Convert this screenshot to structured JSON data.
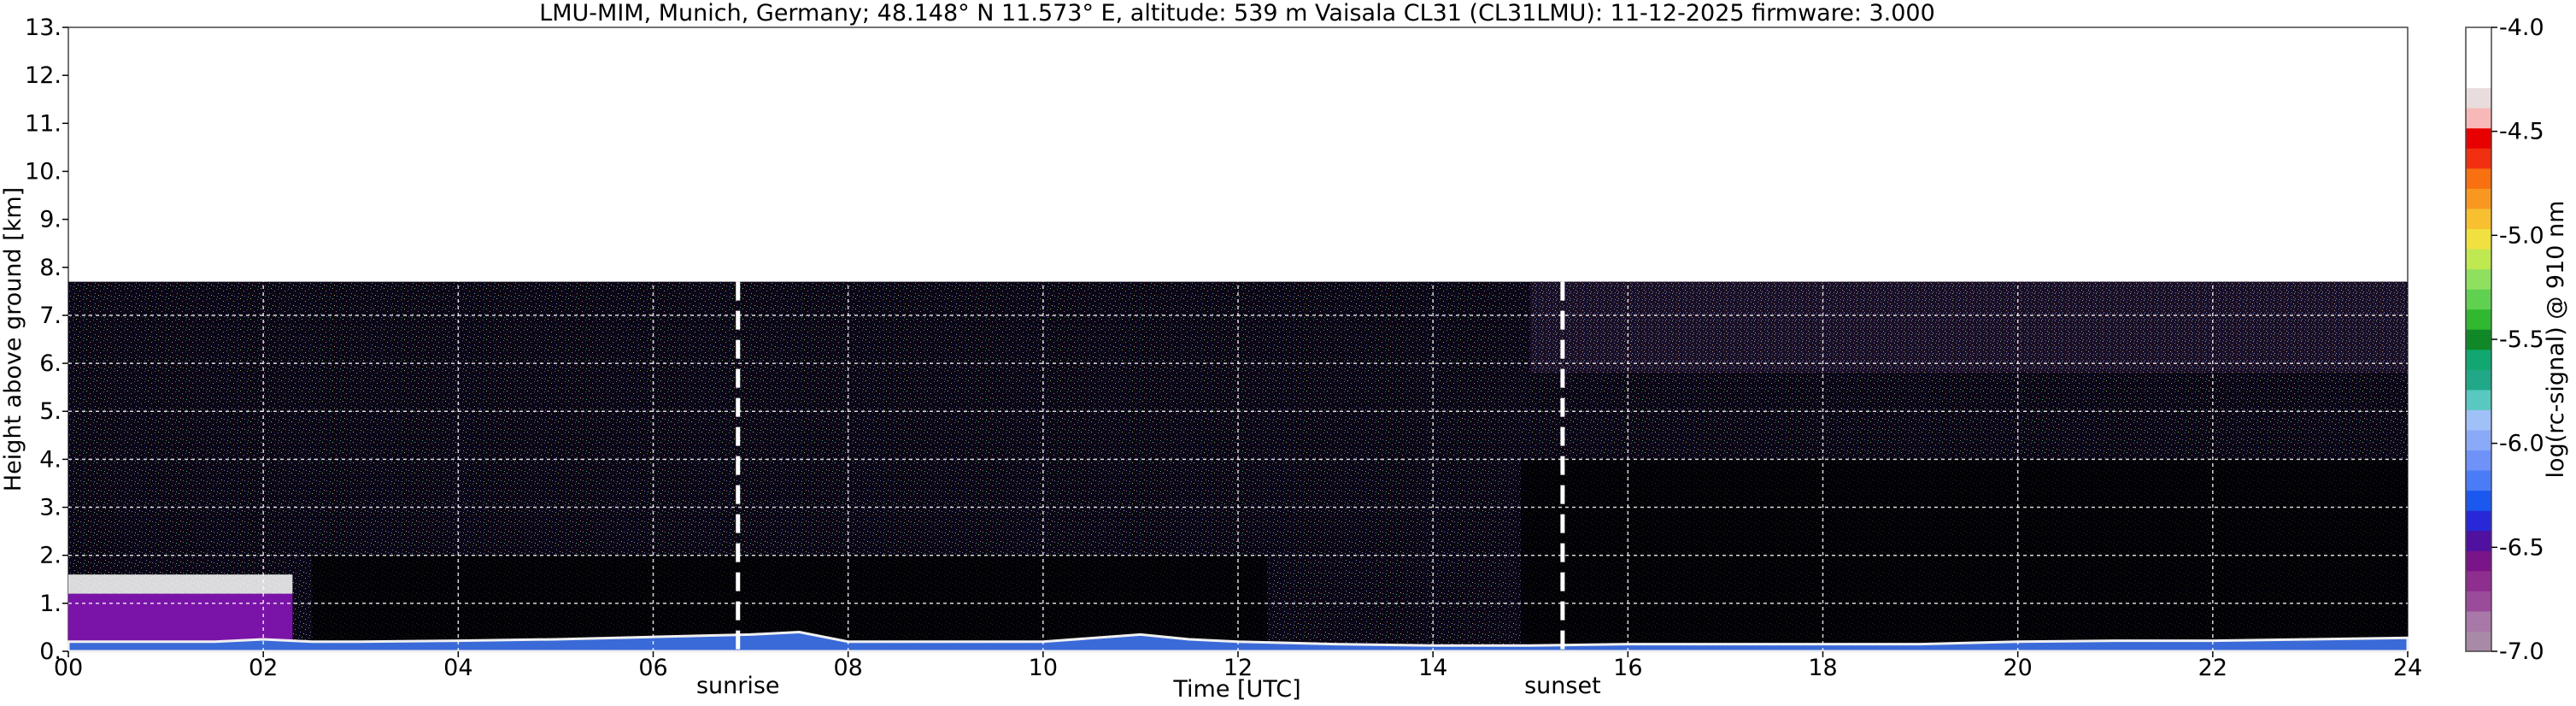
{
  "chart_data": {
    "type": "heatmap",
    "title": "LMU-MIM, Munich, Germany; 48.148° N 11.573° E, altitude: 539 m    Vaisala CL31 (CL31LMU): 11-12-2025    firmware: 3.000",
    "xlabel": "Time [UTC]",
    "ylabel": "Height above ground [km]",
    "colorbar_label": "log(rc-signal) @ 910 nm",
    "xlim": [
      0,
      24
    ],
    "ylim": [
      0,
      13
    ],
    "x_ticks": [
      0,
      2,
      4,
      6,
      8,
      10,
      12,
      14,
      16,
      18,
      20,
      22,
      24
    ],
    "x_tick_labels": [
      "00",
      "02",
      "04",
      "06",
      "08",
      "10",
      "12",
      "14",
      "16",
      "18",
      "20",
      "22",
      "24"
    ],
    "y_ticks": [
      0,
      1,
      2,
      3,
      4,
      5,
      6,
      7,
      8,
      9,
      10,
      11,
      12,
      13
    ],
    "y_tick_labels": [
      "0.",
      "1.",
      "2.",
      "3.",
      "4.",
      "5.",
      "6.",
      "7.",
      "8.",
      "9.",
      "10.",
      "11.",
      "12.",
      "13."
    ],
    "colorbar_range": [
      -7.0,
      -4.0
    ],
    "colorbar_ticks": [
      -7.0,
      -6.5,
      -6.0,
      -5.5,
      -5.0,
      -4.5,
      -4.0
    ],
    "colorbar_tick_labels": [
      "-7.0",
      "-6.5",
      "-6.0",
      "-5.5",
      "-5.0",
      "-4.5",
      "-4.0"
    ],
    "colorbar_colors": [
      "#a88aa8",
      "#a878a8",
      "#9a4c9a",
      "#8e2e8e",
      "#7a1488",
      "#5010a0",
      "#2828d8",
      "#1a58f0",
      "#4a7cf8",
      "#6e92f8",
      "#8aaaf8",
      "#a0c0f8",
      "#58c8c0",
      "#20a888",
      "#10a870",
      "#108828",
      "#30b830",
      "#60d050",
      "#90e060",
      "#c0e850",
      "#f0e040",
      "#f8c030",
      "#f89820",
      "#f87010",
      "#f03010",
      "#e80000",
      "#f8b8b8",
      "#e8dcdc",
      "#ffffff",
      "#ffffff",
      "#ffffff"
    ],
    "grid": true,
    "max_signal_height_km": 7.7,
    "annotations": [
      {
        "label": "sunrise",
        "time": 6.87
      },
      {
        "label": "sunset",
        "time": 15.33
      }
    ],
    "boundary_layer": [
      {
        "time": 0.0,
        "height": 0.2
      },
      {
        "time": 0.5,
        "height": 0.2
      },
      {
        "time": 1.0,
        "height": 0.2
      },
      {
        "time": 1.5,
        "height": 0.2
      },
      {
        "time": 2.0,
        "height": 0.25
      },
      {
        "time": 2.5,
        "height": 0.2
      },
      {
        "time": 3.0,
        "height": 0.2
      },
      {
        "time": 4.0,
        "height": 0.22
      },
      {
        "time": 5.0,
        "height": 0.25
      },
      {
        "time": 6.0,
        "height": 0.3
      },
      {
        "time": 7.0,
        "height": 0.35
      },
      {
        "time": 7.5,
        "height": 0.4
      },
      {
        "time": 8.0,
        "height": 0.2
      },
      {
        "time": 9.0,
        "height": 0.2
      },
      {
        "time": 10.0,
        "height": 0.2
      },
      {
        "time": 11.0,
        "height": 0.35
      },
      {
        "time": 11.5,
        "height": 0.25
      },
      {
        "time": 12.0,
        "height": 0.2
      },
      {
        "time": 13.0,
        "height": 0.15
      },
      {
        "time": 14.0,
        "height": 0.12
      },
      {
        "time": 15.0,
        "height": 0.12
      },
      {
        "time": 16.0,
        "height": 0.15
      },
      {
        "time": 17.0,
        "height": 0.15
      },
      {
        "time": 18.0,
        "height": 0.15
      },
      {
        "time": 19.0,
        "height": 0.15
      },
      {
        "time": 20.0,
        "height": 0.2
      },
      {
        "time": 21.0,
        "height": 0.22
      },
      {
        "time": 22.0,
        "height": 0.22
      },
      {
        "time": 23.0,
        "height": 0.25
      },
      {
        "time": 24.0,
        "height": 0.28
      }
    ],
    "low_cloud_layer": {
      "time_range": [
        0.0,
        2.3
      ],
      "top_height": 1.6
    }
  }
}
